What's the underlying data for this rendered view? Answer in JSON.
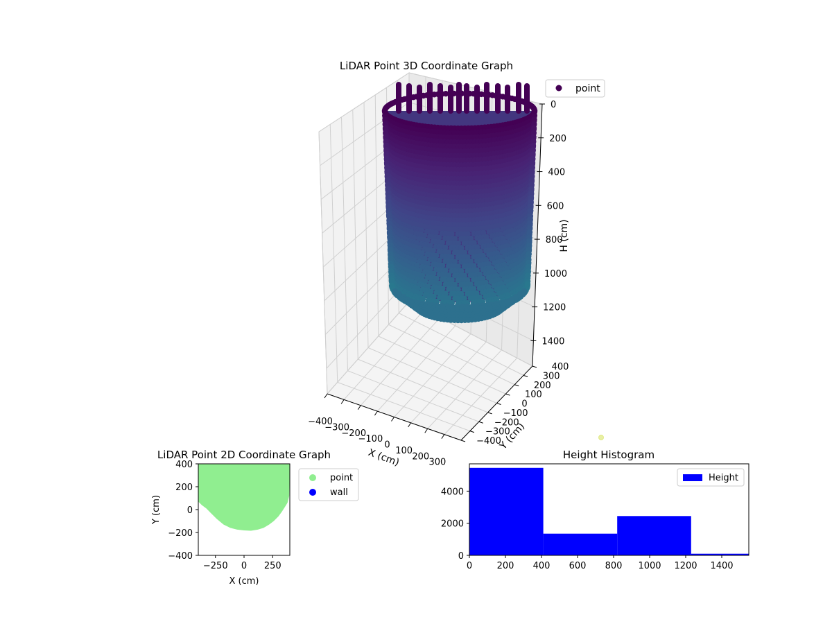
{
  "chart_data": [
    {
      "type": "scatter",
      "title": "LiDAR Point 3D Coordinate Graph",
      "xlabel": "X (cm)",
      "ylabel": "Y (cm)",
      "zlabel": "H (cm)",
      "x_ticks": [
        "−400",
        "−300",
        "−200",
        "−100",
        "0",
        "100",
        "200",
        "300"
      ],
      "y_ticks": [
        "−400",
        "−300",
        "−200",
        "−100",
        "0",
        "100",
        "200",
        "300",
        "400"
      ],
      "z_ticks": [
        "0",
        "200",
        "400",
        "600",
        "800",
        "1000",
        "1200",
        "1400"
      ],
      "xlim": [
        -400,
        400
      ],
      "ylim": [
        -400,
        400
      ],
      "zlim": [
        0,
        1550
      ],
      "z_inverted": true,
      "colormap": "viridis",
      "legend": {
        "placement": "top-right",
        "entries": [
          {
            "label": "point",
            "color": "#440154"
          }
        ]
      },
      "series": [
        {
          "name": "point",
          "shape": "cylinder-shell",
          "center": [
            0,
            30
          ],
          "radius": 330,
          "h_range": [
            0,
            1400
          ],
          "floor_ellipse": true
        }
      ]
    },
    {
      "type": "scatter",
      "title": "LiDAR Point 2D Coordinate Graph",
      "xlabel": "X (cm)",
      "ylabel": "Y (cm)",
      "x_ticks": [
        "−250",
        "0",
        "250"
      ],
      "y_ticks": [
        "−400",
        "−200",
        "0",
        "200",
        "400"
      ],
      "xlim": [
        -400,
        400
      ],
      "ylim": [
        -400,
        400
      ],
      "legend": {
        "placement": "right-outside",
        "entries": [
          {
            "label": "point",
            "color": "#90ee90"
          },
          {
            "label": "wall",
            "color": "#0000ff"
          }
        ]
      },
      "series": [
        {
          "name": "point",
          "color": "#90ee90",
          "outline": [
            [
              -400,
              400
            ],
            [
              400,
              400
            ],
            [
              395,
              120
            ],
            [
              380,
              60
            ],
            [
              355,
              20
            ],
            [
              330,
              -20
            ],
            [
              300,
              -60
            ],
            [
              260,
              -100
            ],
            [
              220,
              -130
            ],
            [
              170,
              -160
            ],
            [
              120,
              -175
            ],
            [
              60,
              -185
            ],
            [
              0,
              -182
            ],
            [
              -60,
              -175
            ],
            [
              -120,
              -160
            ],
            [
              -180,
              -130
            ],
            [
              -240,
              -80
            ],
            [
              -290,
              -30
            ],
            [
              -330,
              10
            ],
            [
              -370,
              40
            ],
            [
              -400,
              70
            ]
          ]
        },
        {
          "name": "wall",
          "color": "#0000ff",
          "points": []
        }
      ]
    },
    {
      "type": "bar",
      "title": "Height Histogram",
      "xlabel": "",
      "ylabel": "",
      "x_ticks": [
        "0",
        "200",
        "400",
        "600",
        "800",
        "1000",
        "1200",
        "1400"
      ],
      "y_ticks": [
        "0",
        "2000",
        "4000"
      ],
      "xlim": [
        0,
        1550
      ],
      "ylim": [
        0,
        5700
      ],
      "legend": {
        "placement": "top-right",
        "entries": [
          {
            "label": "Height",
            "color": "#0000ff"
          }
        ]
      },
      "series": [
        {
          "name": "Height",
          "color": "#0000ff",
          "bins": [
            {
              "x0": 0,
              "x1": 410,
              "value": 5450
            },
            {
              "x0": 410,
              "x1": 820,
              "value": 1350
            },
            {
              "x0": 820,
              "x1": 1230,
              "value": 2450
            },
            {
              "x0": 1230,
              "x1": 1550,
              "value": 100
            }
          ]
        }
      ]
    }
  ]
}
